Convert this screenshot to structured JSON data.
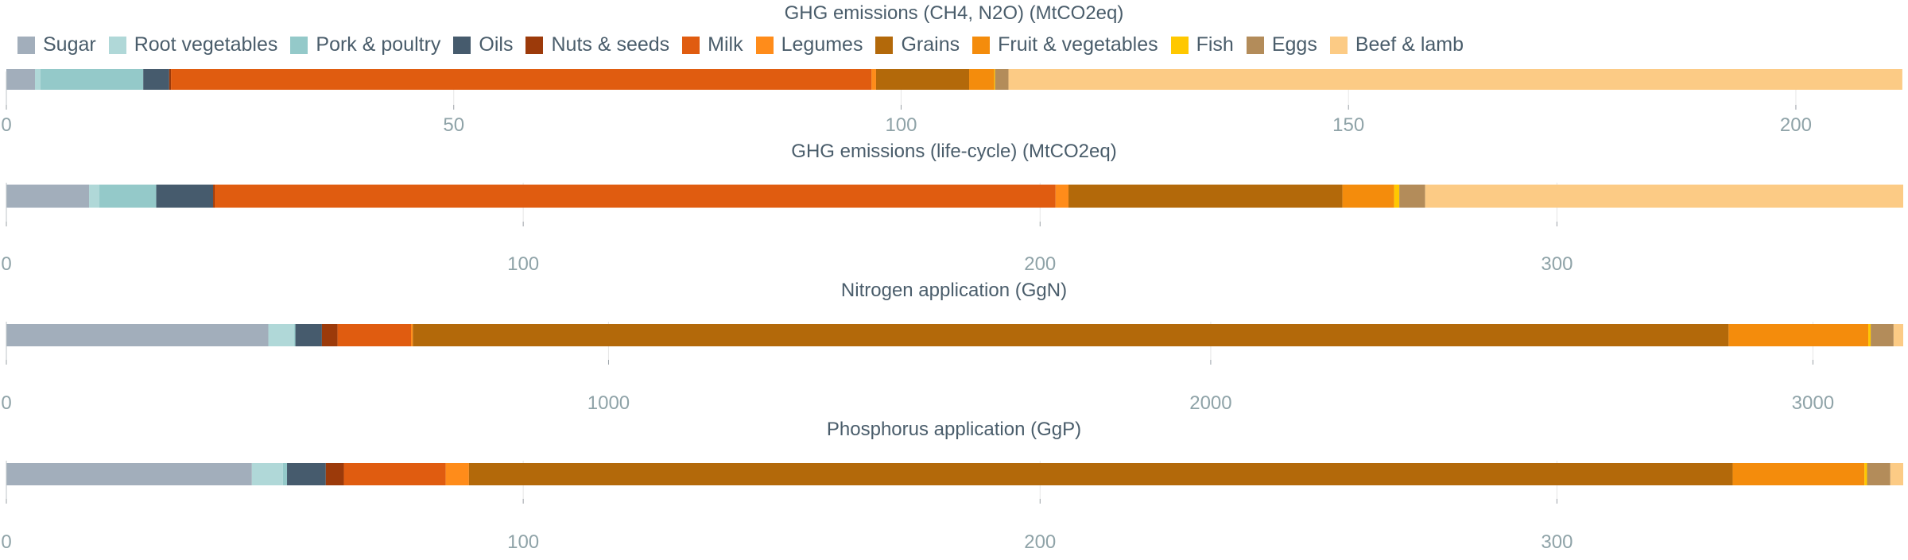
{
  "legend": [
    {
      "name": "Sugar",
      "color": "#a2aebb"
    },
    {
      "name": "Root vegetables",
      "color": "#b0d8d8"
    },
    {
      "name": "Pork & poultry",
      "color": "#94c9c9"
    },
    {
      "name": "Oils",
      "color": "#465b6d"
    },
    {
      "name": "Nuts & seeds",
      "color": "#9c3a0a"
    },
    {
      "name": "Milk",
      "color": "#e05c10"
    },
    {
      "name": "Legumes",
      "color": "#ff8c1a"
    },
    {
      "name": "Grains",
      "color": "#b3690a"
    },
    {
      "name": "Fruit & vegetables",
      "color": "#f48c0c"
    },
    {
      "name": "Fish",
      "color": "#ffc800"
    },
    {
      "name": "Eggs",
      "color": "#b38c5a"
    },
    {
      "name": "Beef & lamb",
      "color": "#fccb85"
    }
  ],
  "chart_data": [
    {
      "type": "bar",
      "orientation": "horizontal",
      "stacked": true,
      "title": "GHG emissions (CH4, N2O) (MtCO2eq)",
      "xlim": [
        0,
        212
      ],
      "ticks": [
        0,
        50,
        100,
        150,
        200
      ],
      "grid": true,
      "segments": [
        {
          "name": "Sugar",
          "value": 3.2
        },
        {
          "name": "Root vegetables",
          "value": 0.6
        },
        {
          "name": "Pork & poultry",
          "value": 11.5
        },
        {
          "name": "Oils",
          "value": 2.9
        },
        {
          "name": "Nuts & seeds",
          "value": 0.2
        },
        {
          "name": "Milk",
          "value": 78.3
        },
        {
          "name": "Legumes",
          "value": 0.5
        },
        {
          "name": "Grains",
          "value": 10.4
        },
        {
          "name": "Fruit & vegetables",
          "value": 2.8
        },
        {
          "name": "Fish",
          "value": 0.1
        },
        {
          "name": "Eggs",
          "value": 1.5
        },
        {
          "name": "Beef & lamb",
          "value": 99.9
        }
      ]
    },
    {
      "type": "bar",
      "orientation": "horizontal",
      "stacked": true,
      "title": "GHG emissions (life-cycle) (MtCO2eq)",
      "xlim": [
        0,
        367
      ],
      "ticks": [
        0,
        100,
        200,
        300
      ],
      "grid": true,
      "segments": [
        {
          "name": "Sugar",
          "value": 16
        },
        {
          "name": "Root vegetables",
          "value": 2
        },
        {
          "name": "Pork & poultry",
          "value": 11
        },
        {
          "name": "Oils",
          "value": 11
        },
        {
          "name": "Nuts & seeds",
          "value": 0.3
        },
        {
          "name": "Milk",
          "value": 162.7
        },
        {
          "name": "Legumes",
          "value": 2.5
        },
        {
          "name": "Grains",
          "value": 53
        },
        {
          "name": "Fruit & vegetables",
          "value": 10
        },
        {
          "name": "Fish",
          "value": 1
        },
        {
          "name": "Eggs",
          "value": 5
        },
        {
          "name": "Beef & lamb",
          "value": 92.5
        }
      ]
    },
    {
      "type": "bar",
      "orientation": "horizontal",
      "stacked": true,
      "title": "Nitrogen application (GgN)",
      "xlim": [
        0,
        3150
      ],
      "ticks": [
        0,
        1000,
        2000,
        3000
      ],
      "grid": true,
      "segments": [
        {
          "name": "Sugar",
          "value": 435
        },
        {
          "name": "Root vegetables",
          "value": 43
        },
        {
          "name": "Pork & poultry",
          "value": 2
        },
        {
          "name": "Oils",
          "value": 44
        },
        {
          "name": "Nuts & seeds",
          "value": 26
        },
        {
          "name": "Milk",
          "value": 122
        },
        {
          "name": "Legumes",
          "value": 3
        },
        {
          "name": "Grains",
          "value": 2185
        },
        {
          "name": "Fruit & vegetables",
          "value": 232
        },
        {
          "name": "Fish",
          "value": 4
        },
        {
          "name": "Eggs",
          "value": 38
        },
        {
          "name": "Beef & lamb",
          "value": 16
        }
      ]
    },
    {
      "type": "bar",
      "orientation": "horizontal",
      "stacked": true,
      "title": "Phosphorus application (GgP)",
      "xlim": [
        0,
        367
      ],
      "ticks": [
        0,
        100,
        200,
        300
      ],
      "grid": true,
      "segments": [
        {
          "name": "Sugar",
          "value": 47.5
        },
        {
          "name": "Root vegetables",
          "value": 6
        },
        {
          "name": "Pork & poultry",
          "value": 0.8
        },
        {
          "name": "Oils",
          "value": 7.5
        },
        {
          "name": "Nuts & seeds",
          "value": 3.5
        },
        {
          "name": "Milk",
          "value": 19.7
        },
        {
          "name": "Legumes",
          "value": 4.5
        },
        {
          "name": "Grains",
          "value": 244.5
        },
        {
          "name": "Fruit & vegetables",
          "value": 25.5
        },
        {
          "name": "Fish",
          "value": 0.5
        },
        {
          "name": "Eggs",
          "value": 4.5
        },
        {
          "name": "Beef & lamb",
          "value": 2.5
        }
      ]
    }
  ]
}
